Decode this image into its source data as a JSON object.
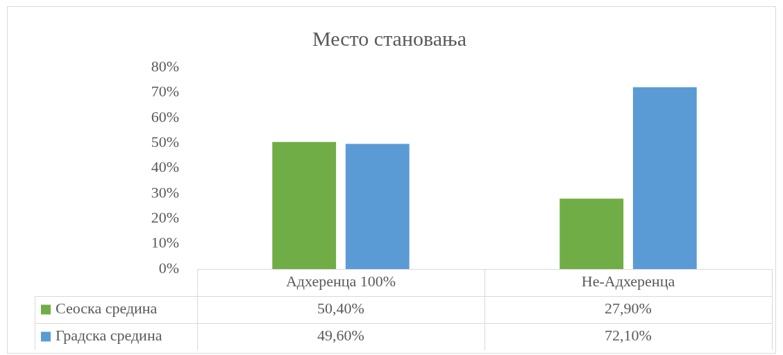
{
  "chart_data": {
    "type": "bar",
    "title": "Место становања",
    "categories": [
      "Адхеренца 100%",
      "Не-Адхеренца"
    ],
    "series": [
      {
        "name": "Сеоска средина",
        "color": "#70ad47",
        "values": [
          50.4,
          27.9
        ],
        "value_labels": [
          "50,40%",
          "27,90%"
        ]
      },
      {
        "name": "Градска средина",
        "color": "#5b9bd5",
        "values": [
          49.6,
          72.1
        ],
        "value_labels": [
          "49,60%",
          "72,10%"
        ]
      }
    ],
    "ylim": [
      0,
      80
    ],
    "yticks": [
      {
        "value": 0,
        "label": "0%"
      },
      {
        "value": 10,
        "label": "10%"
      },
      {
        "value": 20,
        "label": "20%"
      },
      {
        "value": 30,
        "label": "30%"
      },
      {
        "value": 40,
        "label": "40%"
      },
      {
        "value": 50,
        "label": "50%"
      },
      {
        "value": 60,
        "label": "60%"
      },
      {
        "value": 70,
        "label": "70%"
      },
      {
        "value": 80,
        "label": "80%"
      }
    ],
    "legend": "bottom"
  }
}
